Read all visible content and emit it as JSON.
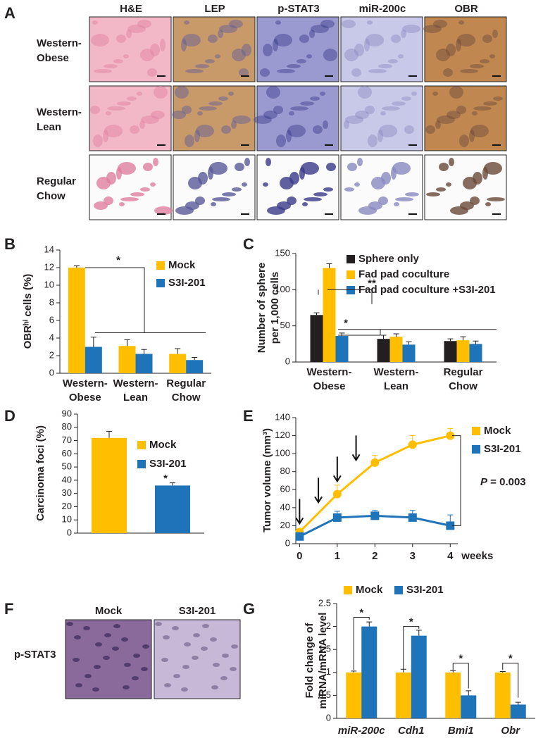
{
  "panel_letters": [
    "A",
    "B",
    "C",
    "D",
    "E",
    "F",
    "G"
  ],
  "panel_a": {
    "columns": [
      "H&E",
      "LEP",
      "p-STAT3",
      "miR-200c",
      "OBR"
    ],
    "rows": [
      [
        "Western-",
        "Obese"
      ],
      [
        "Western-",
        "Lean"
      ],
      [
        "Regular",
        "Chow"
      ]
    ]
  },
  "panel_f": {
    "columns": [
      "Mock",
      "S3I-201"
    ],
    "row": "p-STAT3"
  },
  "chart_data": [
    {
      "type": "bar",
      "ylabel": "OBRʰⁱ cells (%)",
      "categories": [
        [
          "Western-",
          "Obese"
        ],
        [
          "Western-",
          "Lean"
        ],
        [
          "Regular",
          "Chow"
        ]
      ],
      "series": [
        {
          "name": "Mock",
          "color": "#ffbf00",
          "values": [
            12,
            3.1,
            2.2
          ],
          "errors": [
            0.2,
            0.7,
            0.6
          ]
        },
        {
          "name": "S3I-201",
          "color": "#1f73b8",
          "values": [
            3,
            2.2,
            1.5
          ],
          "errors": [
            1.1,
            0.5,
            0.3
          ]
        }
      ],
      "ylim": [
        0,
        14
      ],
      "yticks": [
        0,
        2,
        4,
        6,
        8,
        10,
        12,
        14
      ],
      "annotations": [
        "*"
      ]
    },
    {
      "type": "bar",
      "ylabel": [
        "Number of sphere",
        "per 1,000 cells"
      ],
      "categories": [
        [
          "Western-",
          "Obese"
        ],
        [
          "Western-",
          "Lean"
        ],
        [
          "Regular",
          "Chow"
        ]
      ],
      "series": [
        {
          "name": "Sphere only",
          "color": "#231f20",
          "values": [
            65,
            32,
            29
          ],
          "errors": [
            3,
            5,
            3
          ]
        },
        {
          "name": "Fad pad coculture",
          "color": "#ffbf00",
          "values": [
            130,
            35,
            30
          ],
          "errors": [
            6,
            4,
            5
          ]
        },
        {
          "name": "Fad pad coculture +S3I-201",
          "color": "#1f73b8",
          "values": [
            36,
            24,
            25
          ],
          "errors": [
            4,
            4,
            4
          ]
        }
      ],
      "ylim": [
        0,
        150
      ],
      "yticks": [
        0,
        50,
        100,
        150
      ],
      "annotations": [
        "**",
        "*"
      ]
    },
    {
      "type": "bar",
      "ylabel": "Carcinoma foci (%)",
      "categories": [
        null
      ],
      "series": [
        {
          "name": "Mock",
          "color": "#ffbf00",
          "values": [
            72
          ],
          "errors": [
            5
          ]
        },
        {
          "name": "S3I-201",
          "color": "#1f73b8",
          "values": [
            36
          ],
          "errors": [
            2
          ]
        }
      ],
      "ylim": [
        0,
        90
      ],
      "yticks": [
        0,
        10,
        20,
        30,
        40,
        50,
        60,
        70,
        80,
        90
      ],
      "annotations": [
        "*"
      ]
    },
    {
      "type": "line",
      "ylabel": "Tumor volume (mm³)",
      "xlabel": "weeks",
      "x": [
        0,
        1,
        2,
        3,
        4
      ],
      "series": [
        {
          "name": "Mock",
          "color": "#ffbf00",
          "values": [
            13,
            55,
            90,
            110,
            120
          ],
          "errors": [
            3,
            10,
            8,
            10,
            8
          ]
        },
        {
          "name": "S3I-201",
          "color": "#1f73b8",
          "values": [
            8,
            29,
            31,
            29,
            20
          ],
          "errors": [
            2,
            7,
            6,
            8,
            12
          ]
        }
      ],
      "xlim": [
        -0.1,
        4.2
      ],
      "xticks": [
        0,
        1,
        2,
        3,
        4
      ],
      "ylim": [
        0,
        140
      ],
      "yticks": [
        0,
        20,
        40,
        60,
        80,
        100,
        120,
        140
      ],
      "treatment_x": [
        0,
        0.5,
        1,
        1.5
      ],
      "annotation": {
        "italic": "P",
        "text": "= 0.003"
      }
    },
    {
      "type": "bar",
      "ylabel": [
        "Fold change of",
        "miRNA/mRNA level"
      ],
      "categories": [
        "miR-200c",
        "Cdh1",
        "Bmi1",
        "Obr"
      ],
      "series": [
        {
          "name": "Mock",
          "color": "#ffbf00",
          "values": [
            1,
            1,
            1,
            1
          ],
          "errors": [
            0.03,
            0.07,
            0.04,
            0.02
          ]
        },
        {
          "name": "S3I-201",
          "color": "#1f73b8",
          "values": [
            2,
            1.8,
            0.5,
            0.3
          ],
          "errors": [
            0.1,
            0.12,
            0.1,
            0.05
          ]
        }
      ],
      "ylim": [
        0,
        2.5
      ],
      "yticks": [
        0,
        0.5,
        1,
        1.5,
        2,
        2.5
      ],
      "annotations": [
        "*",
        "*",
        "*",
        "*"
      ]
    }
  ]
}
